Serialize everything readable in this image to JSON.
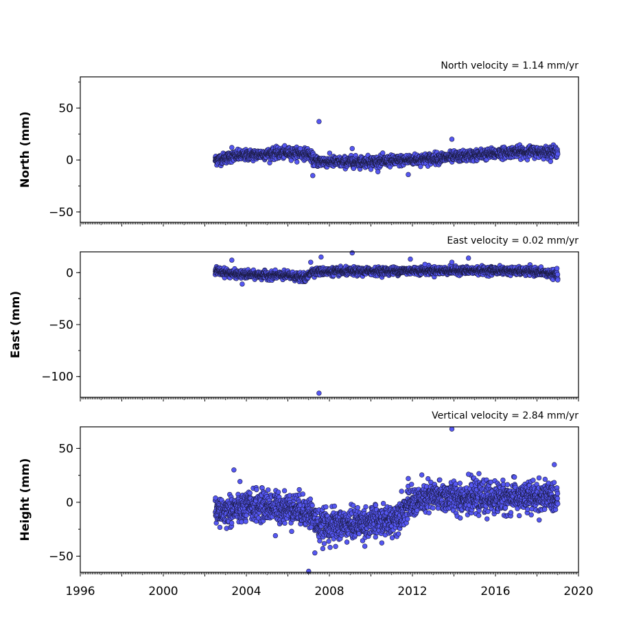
{
  "chart_data": [
    {
      "type": "scatter",
      "panel": "north",
      "annotation": "North velocity = 1.14 mm/yr",
      "ylabel": "North (mm)",
      "xlim": [
        1996,
        2020
      ],
      "ylim": [
        -60,
        80
      ],
      "yticks": [
        -50,
        0,
        50
      ],
      "ytick_labels": [
        "−50",
        "0",
        "50"
      ],
      "marker_color": "#5557f2",
      "series": [
        {
          "trend": [
            [
              2002.5,
              0
            ],
            [
              2003.5,
              4
            ],
            [
              2006.0,
              7
            ],
            [
              2007.0,
              6
            ],
            [
              2007.3,
              -1
            ],
            [
              2008.5,
              -2
            ],
            [
              2011.0,
              -1
            ],
            [
              2014.0,
              3
            ],
            [
              2017.0,
              8
            ],
            [
              2019.0,
              8
            ]
          ],
          "scatter_mm": 2.5,
          "outliers": [
            [
              2007.5,
              37
            ],
            [
              2013.9,
              20
            ],
            [
              2009.1,
              11
            ],
            [
              2007.2,
              -15
            ],
            [
              2010.0,
              -9
            ],
            [
              2011.8,
              -14
            ],
            [
              2003.3,
              12
            ],
            [
              2006.6,
              11
            ]
          ]
        }
      ]
    },
    {
      "type": "scatter",
      "panel": "east",
      "annotation": "East velocity = 0.02 mm/yr",
      "ylabel": "East (mm)",
      "xlim": [
        1996,
        2020
      ],
      "ylim": [
        -120,
        20
      ],
      "yticks": [
        -100,
        -50,
        0
      ],
      "ytick_labels": [
        "−100",
        "−50",
        "0"
      ],
      "marker_color": "#5557f2",
      "series": [
        {
          "trend": [
            [
              2002.5,
              2
            ],
            [
              2003.3,
              -1
            ],
            [
              2004.0,
              -2
            ],
            [
              2006.0,
              -3
            ],
            [
              2006.9,
              -5
            ],
            [
              2007.1,
              1
            ],
            [
              2009.0,
              1
            ],
            [
              2012.0,
              2
            ],
            [
              2016.0,
              2
            ],
            [
              2018.0,
              1
            ],
            [
              2019.0,
              -2
            ]
          ],
          "scatter_mm": 1.8,
          "outliers": [
            [
              2007.5,
              -116
            ],
            [
              2007.6,
              15
            ],
            [
              2009.1,
              19
            ],
            [
              2011.9,
              13
            ],
            [
              2012.6,
              8
            ],
            [
              2014.7,
              14
            ],
            [
              2013.9,
              10
            ],
            [
              2003.3,
              12
            ],
            [
              2003.8,
              -11
            ],
            [
              2019.0,
              -7
            ],
            [
              2007.1,
              10
            ]
          ]
        }
      ]
    },
    {
      "type": "scatter",
      "panel": "height",
      "annotation": "Vertical velocity = 2.84 mm/yr",
      "ylabel": "Height (mm)",
      "xlim": [
        1996,
        2020
      ],
      "ylim": [
        -65,
        70
      ],
      "xticks": [
        1996,
        2000,
        2004,
        2008,
        2012,
        2016,
        2020
      ],
      "xtick_labels": [
        "1996",
        "2000",
        "2004",
        "2008",
        "2012",
        "2016",
        "2020"
      ],
      "yticks": [
        -50,
        0,
        50
      ],
      "ytick_labels": [
        "−50",
        "0",
        "50"
      ],
      "marker_color": "#5557f2",
      "series": [
        {
          "trend": [
            [
              2002.5,
              -10
            ],
            [
              2004.5,
              -3
            ],
            [
              2006.5,
              -6
            ],
            [
              2007.1,
              -10
            ],
            [
              2007.5,
              -22
            ],
            [
              2009.0,
              -20
            ],
            [
              2011.0,
              -17
            ],
            [
              2012.0,
              0
            ],
            [
              2013.0,
              5
            ],
            [
              2016.0,
              4
            ],
            [
              2019.0,
              5
            ]
          ],
          "scatter_mm": 7,
          "outliers": [
            [
              2013.9,
              68
            ],
            [
              2003.4,
              30
            ],
            [
              2007.0,
              -64
            ],
            [
              2007.3,
              -47
            ],
            [
              2005.4,
              -31
            ],
            [
              2011.8,
              22
            ],
            [
              2014.7,
              26
            ],
            [
              2008.3,
              -41
            ]
          ]
        }
      ]
    }
  ]
}
